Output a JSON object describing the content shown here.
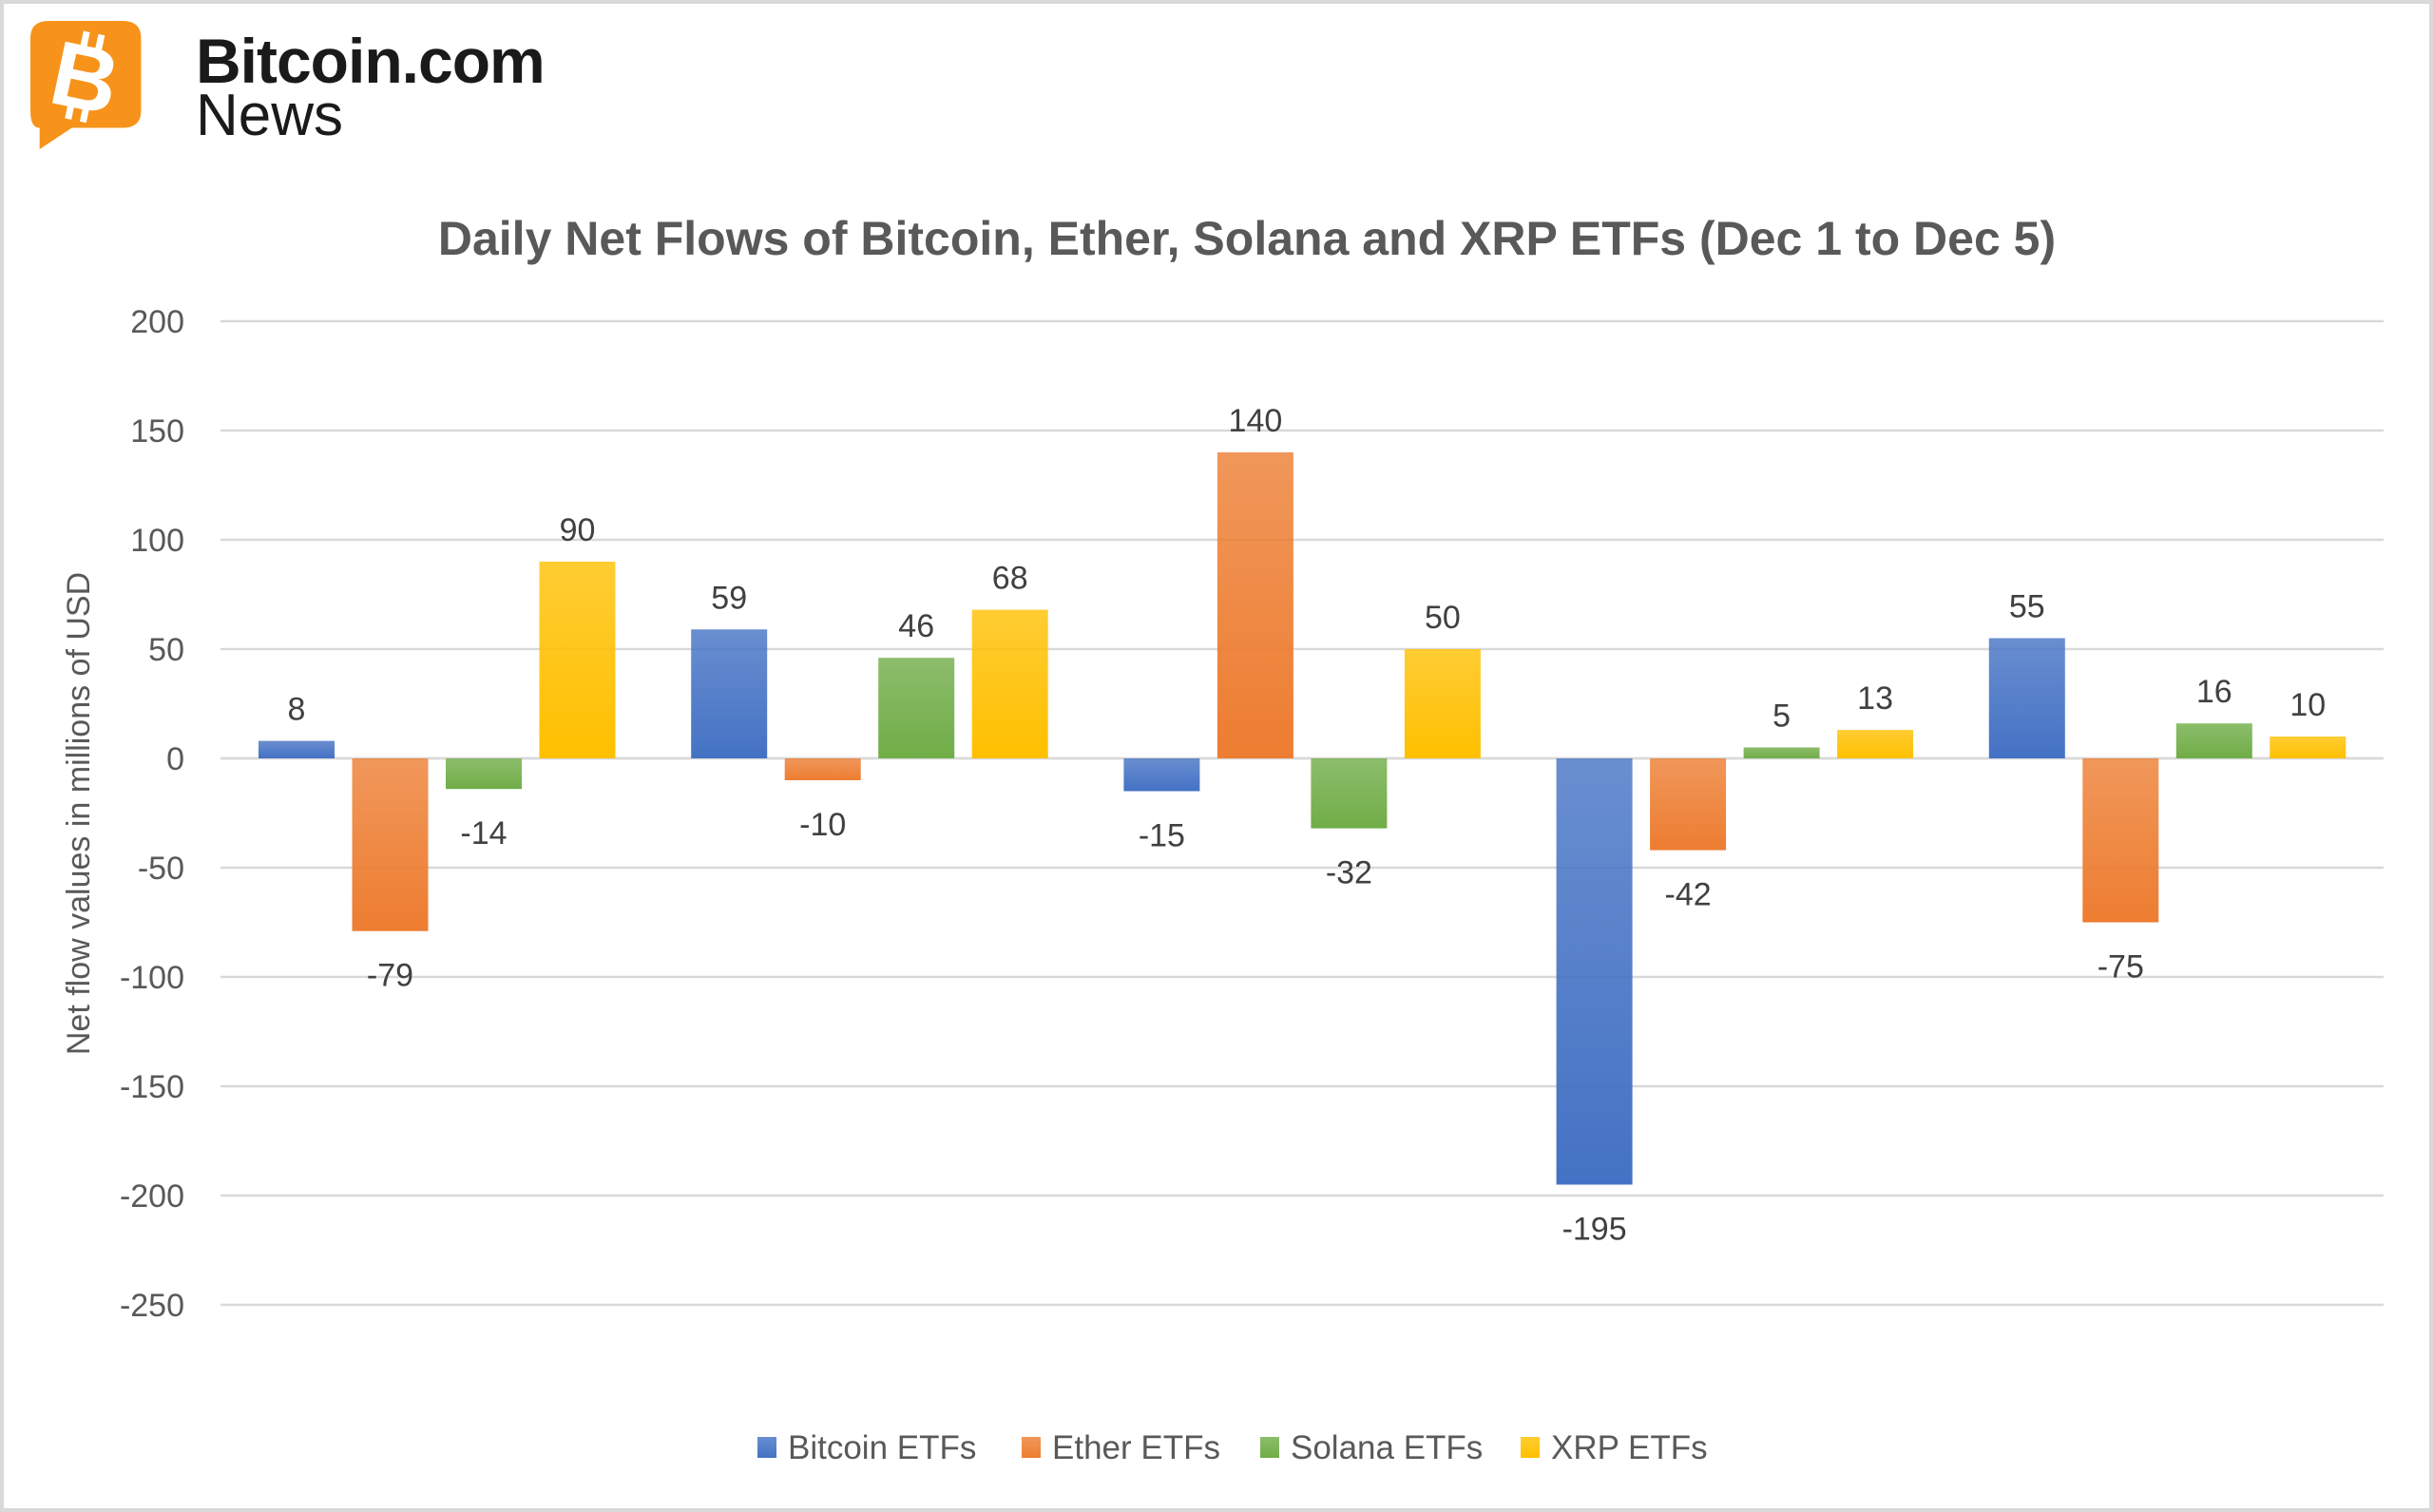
{
  "logo": {
    "line1": "Bitcoin.com",
    "line2": "News",
    "color": "#f7931a"
  },
  "chart_data": {
    "type": "bar",
    "title": "Daily Net Flows of Bitcoin, Ether, Solana and XRP ETFs (Dec 1 to Dec 5)",
    "xlabel": "",
    "ylabel": "Net flow values in millions of USD",
    "ylim": [
      -250,
      200
    ],
    "yticks": [
      200,
      150,
      100,
      50,
      0,
      -50,
      -100,
      -150,
      -200,
      -250
    ],
    "grid": true,
    "legend_position": "bottom",
    "categories": [
      "",
      "",
      "",
      "",
      ""
    ],
    "series": [
      {
        "name": "Bitcoin ETFs",
        "color": "#4472c4",
        "values": [
          8,
          59,
          -15,
          -195,
          55
        ]
      },
      {
        "name": "Ether ETFs",
        "color": "#ed7d31",
        "values": [
          -79,
          -10,
          140,
          -42,
          -75
        ]
      },
      {
        "name": "Solana ETFs",
        "color": "#70ad47",
        "values": [
          -14,
          46,
          -32,
          5,
          16
        ]
      },
      {
        "name": "XRP ETFs",
        "color": "#ffc000",
        "values": [
          90,
          68,
          50,
          13,
          10
        ]
      }
    ]
  }
}
